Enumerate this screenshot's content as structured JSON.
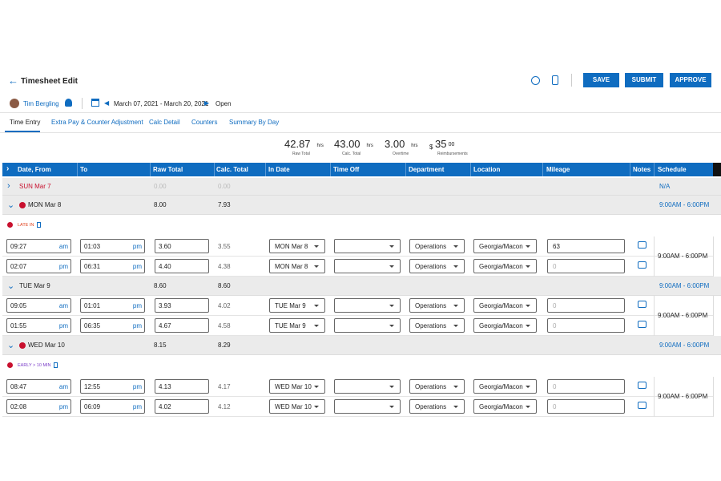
{
  "header": {
    "title": "Timesheet Edit",
    "buttons": [
      "SAVE",
      "SUBMIT",
      "APPROVE"
    ]
  },
  "info": {
    "employee": "Tim Bergling",
    "period": "March 07, 2021 - March 20, 2021",
    "status": "Open"
  },
  "tabs": [
    "Time Entry",
    "Extra Pay & Counter Adjustment",
    "Calc Detail",
    "Counters",
    "Summary By Day"
  ],
  "totals": [
    {
      "value": "42.87",
      "unit": "hrs",
      "label": "Raw Total"
    },
    {
      "value": "43.00",
      "unit": "hrs",
      "label": "Calc. Total"
    },
    {
      "value": "3.00",
      "unit": "hrs",
      "label": "Overtime"
    },
    {
      "prefix": "$",
      "value": "35",
      "suffix": "00",
      "label": "Reimbursements"
    }
  ],
  "columns": [
    "Date, From",
    "To",
    "Raw Total",
    "Calc. Total",
    "In Date",
    "Time Off",
    "Department",
    "Location",
    "Mileage",
    "Notes",
    "Schedule"
  ],
  "days": [
    {
      "day": "SUN Mar 7",
      "raw": "0.00",
      "calc": "0.00",
      "schedule": "N/A",
      "entries": []
    },
    {
      "day": "MON Mar 8",
      "alert": true,
      "raw": "8.00",
      "calc": "7.93",
      "schedule": "9:00AM - 6:00PM",
      "exception": "LATE IN",
      "entry_schedule": "9:00AM - 6:00PM",
      "entries": [
        {
          "from": "09:27",
          "from_ampm": "am",
          "to": "01:03",
          "to_ampm": "pm",
          "raw": "3.60",
          "calc": "3.55",
          "in_date": "MON Mar 8",
          "department": "Operations",
          "location": "Georgia/Macon",
          "mileage": "63"
        },
        {
          "from": "02:07",
          "from_ampm": "pm",
          "to": "06:31",
          "to_ampm": "pm",
          "raw": "4.40",
          "calc": "4.38",
          "in_date": "MON Mar 8",
          "department": "Operations",
          "location": "Georgia/Macon",
          "mileage": "0"
        }
      ]
    },
    {
      "day": "TUE Mar 9",
      "raw": "8.60",
      "calc": "8.60",
      "schedule": "9:00AM - 6:00PM",
      "entry_schedule": "9:00AM - 6:00PM",
      "entries": [
        {
          "from": "09:05",
          "from_ampm": "am",
          "to": "01:01",
          "to_ampm": "pm",
          "raw": "3.93",
          "calc": "4.02",
          "in_date": "TUE Mar 9",
          "department": "Operations",
          "location": "Georgia/Macon",
          "mileage": "0"
        },
        {
          "from": "01:55",
          "from_ampm": "pm",
          "to": "06:35",
          "to_ampm": "pm",
          "raw": "4.67",
          "calc": "4.58",
          "in_date": "TUE Mar 9",
          "department": "Operations",
          "location": "Georgia/Macon",
          "mileage": "0"
        }
      ]
    },
    {
      "day": "WED Mar 10",
      "alert": true,
      "raw": "8.15",
      "calc": "8.29",
      "schedule": "9:00AM - 6:00PM",
      "exception": "EARLY > 10 MIN",
      "entry_schedule": "9:00AM - 6:00PM",
      "entries": [
        {
          "from": "08:47",
          "from_ampm": "am",
          "to": "12:55",
          "to_ampm": "pm",
          "raw": "4.13",
          "calc": "4.17",
          "in_date": "WED Mar 10",
          "department": "Operations",
          "location": "Georgia/Macon",
          "mileage": "0"
        },
        {
          "from": "02:08",
          "from_ampm": "pm",
          "to": "06:09",
          "to_ampm": "pm",
          "raw": "4.02",
          "calc": "4.12",
          "in_date": "WED Mar 10",
          "department": "Operations",
          "location": "Georgia/Macon",
          "mileage": "0"
        }
      ]
    }
  ]
}
